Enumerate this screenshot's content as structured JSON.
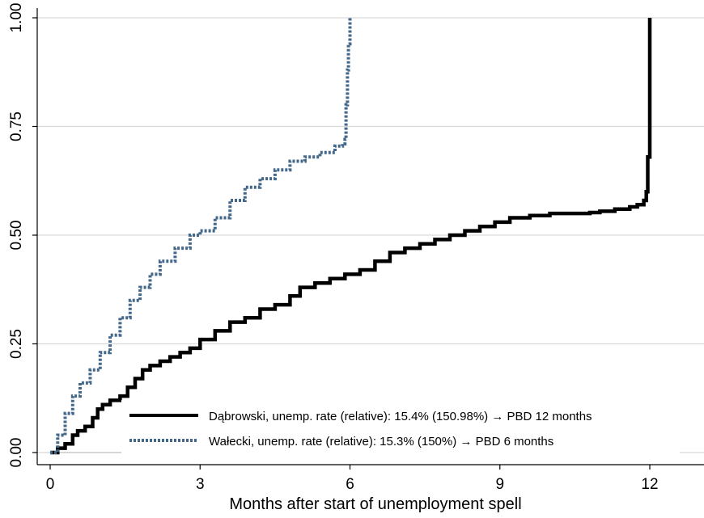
{
  "chart_data": {
    "type": "line",
    "title": "",
    "xlabel": "Months after start of unemployment spell",
    "ylabel": "",
    "xlim": [
      0,
      13
    ],
    "ylim": [
      0,
      1
    ],
    "xticks": [
      0,
      3,
      6,
      9,
      12
    ],
    "xtick_labels": [
      "0",
      "3",
      "6",
      "9",
      "12"
    ],
    "yticks": [
      0,
      0.25,
      0.5,
      0.75,
      1
    ],
    "ytick_labels": [
      "0.00",
      "0.25",
      "0.50",
      "0.75",
      "1.00"
    ],
    "grid": "horizontal",
    "legend_position": "bottom-right",
    "series": [
      {
        "name": "Dąbrowski, unemp. rate (relative): 15.4% (150.98%) → PBD 12 months",
        "color": "#000000",
        "style": "solid",
        "x": [
          0,
          0.15,
          0.3,
          0.45,
          0.55,
          0.7,
          0.85,
          0.95,
          1.05,
          1.2,
          1.4,
          1.55,
          1.7,
          1.85,
          2.0,
          2.2,
          2.4,
          2.6,
          2.8,
          3.0,
          3.3,
          3.6,
          3.9,
          4.2,
          4.5,
          4.8,
          5.0,
          5.3,
          5.6,
          5.9,
          6.2,
          6.5,
          6.8,
          7.1,
          7.4,
          7.7,
          8.0,
          8.3,
          8.6,
          8.9,
          9.2,
          9.6,
          10.0,
          10.4,
          10.8,
          11.0,
          11.3,
          11.6,
          11.75,
          11.88,
          11.93,
          11.96,
          12.0,
          12.0
        ],
        "values": [
          0,
          0.01,
          0.02,
          0.04,
          0.05,
          0.06,
          0.08,
          0.1,
          0.11,
          0.12,
          0.13,
          0.15,
          0.17,
          0.19,
          0.2,
          0.21,
          0.22,
          0.23,
          0.24,
          0.26,
          0.28,
          0.3,
          0.31,
          0.33,
          0.34,
          0.36,
          0.38,
          0.39,
          0.4,
          0.41,
          0.42,
          0.44,
          0.46,
          0.47,
          0.48,
          0.49,
          0.5,
          0.51,
          0.52,
          0.53,
          0.54,
          0.545,
          0.55,
          0.55,
          0.552,
          0.555,
          0.56,
          0.565,
          0.57,
          0.58,
          0.6,
          0.68,
          0.9,
          1.0
        ]
      },
      {
        "name": "Wałecki, unemp. rate (relative): 15.3% (150%) → PBD 6 months",
        "color": "#44688a",
        "style": "dashed",
        "x": [
          0,
          0.15,
          0.3,
          0.45,
          0.6,
          0.8,
          1.0,
          1.2,
          1.4,
          1.6,
          1.8,
          2.0,
          2.2,
          2.5,
          2.8,
          3.0,
          3.3,
          3.6,
          3.9,
          4.2,
          4.5,
          4.8,
          5.1,
          5.4,
          5.7,
          5.85,
          5.9,
          5.92,
          5.95,
          5.97,
          6.0,
          6.0
        ],
        "values": [
          0,
          0.04,
          0.09,
          0.13,
          0.16,
          0.19,
          0.23,
          0.27,
          0.31,
          0.35,
          0.38,
          0.41,
          0.44,
          0.47,
          0.5,
          0.51,
          0.54,
          0.58,
          0.61,
          0.63,
          0.65,
          0.67,
          0.68,
          0.69,
          0.705,
          0.71,
          0.72,
          0.8,
          0.88,
          0.94,
          0.98,
          1.0
        ]
      }
    ]
  }
}
